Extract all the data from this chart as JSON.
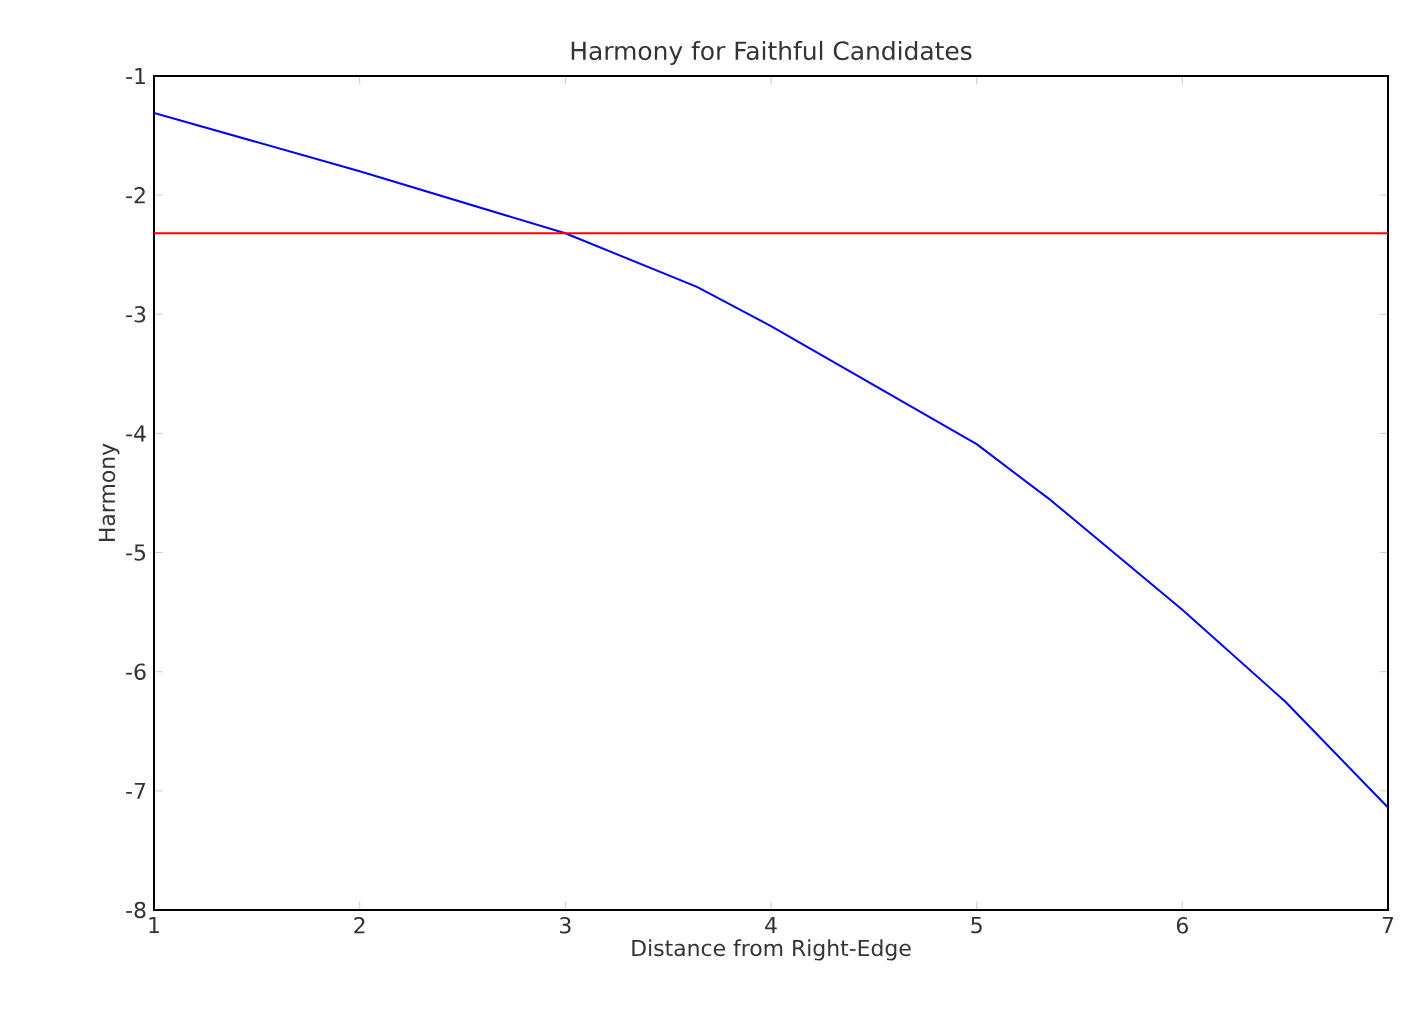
{
  "chart_data": {
    "type": "line",
    "title": "Harmony for Faithful Candidates",
    "xlabel": "Distance from Right-Edge",
    "ylabel": "Harmony",
    "x": [
      1,
      2,
      3,
      3.64,
      4,
      5,
      5.36,
      6,
      6.5,
      7
    ],
    "series": [
      {
        "color": "#0000ff",
        "values": [
          -1.31,
          -1.8,
          -2.32,
          -2.77,
          -3.1,
          -4.09,
          -4.56,
          -5.48,
          -6.25,
          -7.14
        ]
      }
    ],
    "ref_lines": [
      {
        "axis": "y",
        "value": -2.32,
        "color": "#ff0000"
      }
    ],
    "xlim": [
      1,
      7
    ],
    "ylim": [
      -8,
      -1
    ],
    "xticks": [
      1,
      2,
      3,
      4,
      5,
      6,
      7
    ],
    "yticks": [
      -8,
      -7,
      -6,
      -5,
      -4,
      -3,
      -2,
      -1
    ],
    "grid": false
  }
}
